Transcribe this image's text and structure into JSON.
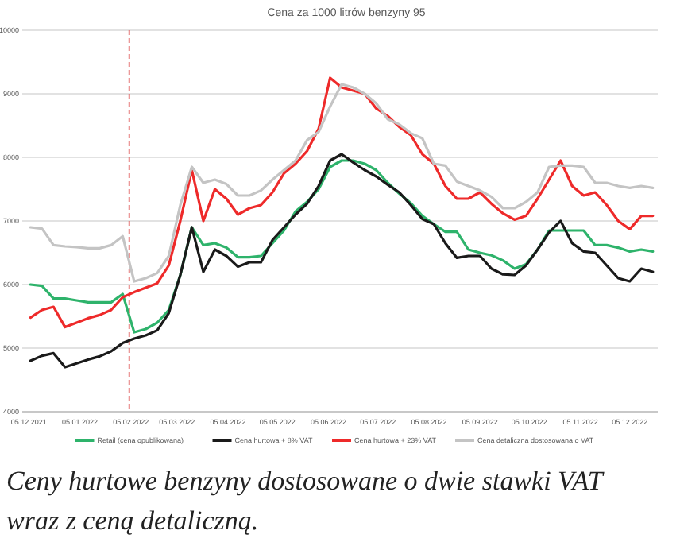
{
  "chart_data": {
    "type": "line",
    "title": "Cena za 1000 litrów benzyny 95",
    "x": [
      "2021-12-06",
      "2021-12-13",
      "2021-12-20",
      "2021-12-27",
      "2022-01-03",
      "2022-01-10",
      "2022-01-17",
      "2022-01-24",
      "2022-01-31",
      "2022-02-07",
      "2022-02-14",
      "2022-02-21",
      "2022-02-28",
      "2022-03-07",
      "2022-03-14",
      "2022-03-21",
      "2022-03-28",
      "2022-04-04",
      "2022-04-11",
      "2022-04-18",
      "2022-04-25",
      "2022-05-02",
      "2022-05-09",
      "2022-05-16",
      "2022-05-23",
      "2022-05-30",
      "2022-06-06",
      "2022-06-13",
      "2022-06-20",
      "2022-06-27",
      "2022-07-04",
      "2022-07-11",
      "2022-07-18",
      "2022-07-25",
      "2022-08-01",
      "2022-08-08",
      "2022-08-15",
      "2022-08-22",
      "2022-08-29",
      "2022-09-05",
      "2022-09-12",
      "2022-09-19",
      "2022-09-26",
      "2022-10-03",
      "2022-10-10",
      "2022-10-17",
      "2022-10-24",
      "2022-10-31",
      "2022-11-07",
      "2022-11-14",
      "2022-11-21",
      "2022-11-28",
      "2022-12-05",
      "2022-12-12",
      "2022-12-19"
    ],
    "series": [
      {
        "name": "Retail (cena opublikowana)",
        "color": "#2eb36b",
        "values": [
          6000,
          5980,
          5780,
          5780,
          5750,
          5720,
          5720,
          5720,
          5850,
          5250,
          5300,
          5400,
          5600,
          6150,
          6900,
          6620,
          6650,
          6580,
          6430,
          6430,
          6450,
          6650,
          6850,
          7150,
          7300,
          7500,
          7850,
          7950,
          7950,
          7900,
          7800,
          7600,
          7430,
          7280,
          7080,
          6950,
          6830,
          6830,
          6550,
          6500,
          6460,
          6380,
          6250,
          6320,
          6550,
          6850,
          6850,
          6850,
          6850,
          6620,
          6620,
          6580,
          6520,
          6550,
          6520
        ]
      },
      {
        "name": "Cena hurtowa + 8% VAT",
        "color": "#1a1a1a",
        "values": [
          4800,
          4880,
          4920,
          4700,
          4760,
          4820,
          4870,
          4950,
          5080,
          5150,
          5200,
          5280,
          5550,
          6150,
          6900,
          6200,
          6550,
          6450,
          6280,
          6350,
          6350,
          6700,
          6900,
          7100,
          7270,
          7550,
          7950,
          8050,
          7920,
          7800,
          7700,
          7570,
          7450,
          7250,
          7030,
          6950,
          6650,
          6420,
          6450,
          6450,
          6250,
          6160,
          6150,
          6300,
          6550,
          6820,
          7000,
          6650,
          6520,
          6500,
          6300,
          6100,
          6050,
          6250,
          6200
        ]
      },
      {
        "name": "Cena hurtowa + 23% VAT",
        "color": "#ee2a2a",
        "values": [
          5480,
          5600,
          5650,
          5330,
          5400,
          5470,
          5520,
          5600,
          5800,
          5880,
          5950,
          6020,
          6300,
          7000,
          7800,
          7000,
          7500,
          7350,
          7100,
          7200,
          7250,
          7450,
          7750,
          7900,
          8100,
          8450,
          9250,
          9100,
          9050,
          9000,
          8770,
          8650,
          8480,
          8350,
          8050,
          7900,
          7550,
          7350,
          7350,
          7450,
          7270,
          7120,
          7020,
          7080,
          7350,
          7650,
          7950,
          7550,
          7400,
          7450,
          7250,
          7000,
          6870,
          7080,
          7080
        ]
      },
      {
        "name": "Cena detaliczna dostosowana o VAT",
        "color": "#c4c4c4",
        "values": [
          6900,
          6880,
          6620,
          6600,
          6590,
          6570,
          6570,
          6620,
          6760,
          6050,
          6100,
          6180,
          6450,
          7250,
          7850,
          7600,
          7650,
          7580,
          7400,
          7400,
          7480,
          7650,
          7800,
          7950,
          8270,
          8400,
          8800,
          9150,
          9100,
          9000,
          8850,
          8600,
          8520,
          8380,
          8300,
          7900,
          7870,
          7620,
          7550,
          7480,
          7380,
          7200,
          7200,
          7300,
          7450,
          7850,
          7870,
          7870,
          7850,
          7600,
          7600,
          7550,
          7520,
          7550,
          7520
        ]
      }
    ],
    "xlim": [
      "2021-12-01",
      "2022-12-22"
    ],
    "xticks": [
      {
        "value": "2021-12-05",
        "label": "05.12.2021"
      },
      {
        "value": "2022-01-05",
        "label": "05.01.2022"
      },
      {
        "value": "2022-02-05",
        "label": "05.02.2022"
      },
      {
        "value": "2022-03-05",
        "label": "05.03.2022"
      },
      {
        "value": "2022-04-05",
        "label": "05.04.2022"
      },
      {
        "value": "2022-05-05",
        "label": "05.05.2022"
      },
      {
        "value": "2022-06-05",
        "label": "05.06.2022"
      },
      {
        "value": "2022-07-05",
        "label": "05.07.2022"
      },
      {
        "value": "2022-08-05",
        "label": "05.08.2022"
      },
      {
        "value": "2022-09-05",
        "label": "05.09.2022"
      },
      {
        "value": "2022-10-05",
        "label": "05.10.2022"
      },
      {
        "value": "2022-11-05",
        "label": "05.11.2022"
      },
      {
        "value": "2022-12-05",
        "label": "05.12.2022"
      }
    ],
    "ylim": [
      4000,
      10000
    ],
    "yticks": [
      4000,
      5000,
      6000,
      7000,
      8000,
      9000,
      10000
    ],
    "grid": "y",
    "legend": "bottom",
    "line_style": "solid",
    "marker": "none",
    "ref_lines": [
      {
        "axis": "x",
        "value": "2022-02-04",
        "label": null,
        "color": "#e05a5a",
        "line_style": "dashed"
      }
    ],
    "annotations": [
      "Ceny hurtowe benzyny dostosowane o dwie stawki VAT wraz z ceną detaliczną."
    ]
  }
}
